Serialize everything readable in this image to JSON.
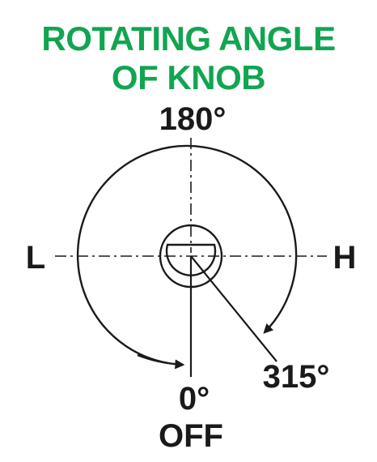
{
  "title": {
    "line1": "ROTATING ANGLE",
    "line2": "OF KNOB",
    "color": "#12a551"
  },
  "labels": {
    "top": "180°",
    "left": "L",
    "right": "H",
    "bottom_angle": "0°",
    "bottom_state": "OFF",
    "max_angle": "315°"
  },
  "colors": {
    "stroke": "#1a1a1a",
    "background": "#ffffff"
  }
}
